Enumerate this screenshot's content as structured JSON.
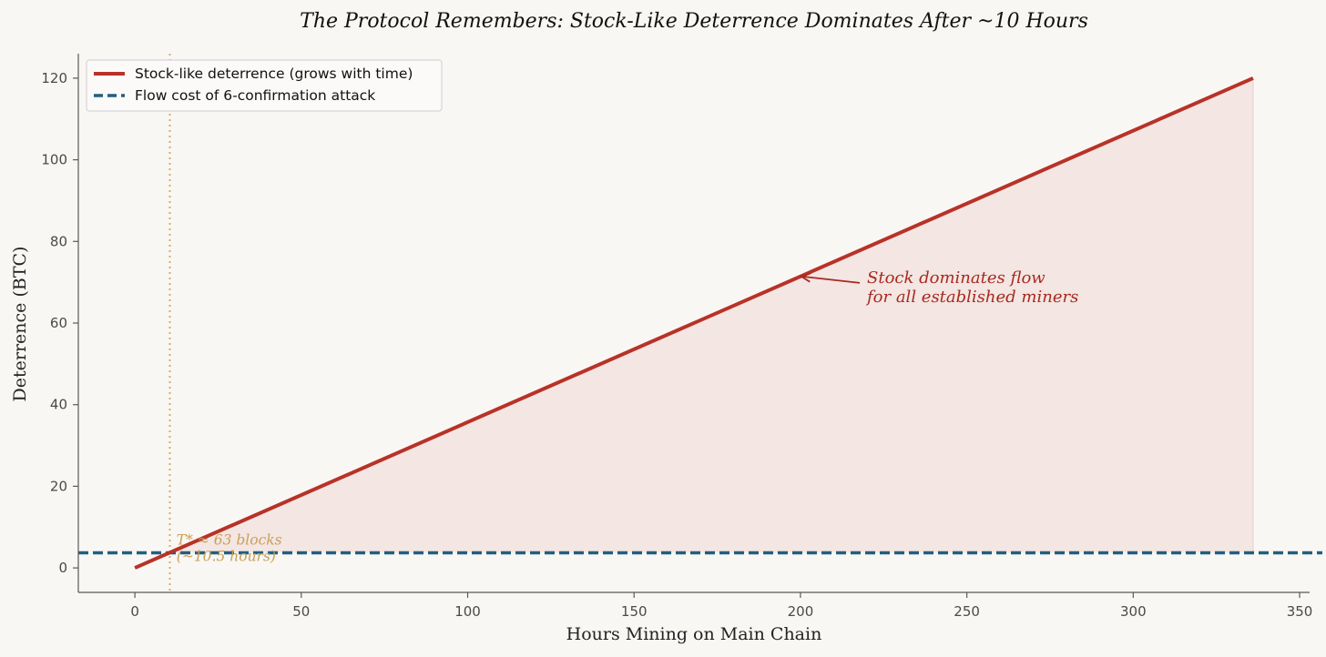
{
  "chart_data": {
    "type": "line",
    "title": "The Protocol Remembers: Stock-Like Deterrence Dominates After ~10 Hours",
    "xlabel": "Hours Mining on Main Chain",
    "ylabel": "Deterrence (BTC)",
    "xlim": [
      -17,
      353
    ],
    "ylim": [
      -6,
      126
    ],
    "xticks": [
      0,
      50,
      100,
      150,
      200,
      250,
      300,
      350
    ],
    "yticks": [
      0,
      20,
      40,
      60,
      80,
      100,
      120
    ],
    "grid": false,
    "legend_position": "top-left",
    "series": [
      {
        "name": "Stock-like deterrence (grows with time)",
        "style": "solid",
        "color": "#b83228",
        "x": [
          0,
          336
        ],
        "y": [
          0,
          120
        ],
        "fill_above": "Flow cost of 6-confirmation attack"
      },
      {
        "name": "Flow cost of 6-confirmation attack",
        "style": "dashed",
        "color": "#225f80",
        "y_constant": 3.7
      }
    ],
    "vline": {
      "x": 10.5,
      "style": "dotted",
      "color": "#d4ad6a"
    },
    "annotations": [
      {
        "id": "crossover",
        "lines": [
          "T* ≈ 63 blocks",
          "(~10.5 hours)"
        ],
        "x": 12.5,
        "y": 3.5,
        "color": "#c9a055"
      },
      {
        "id": "dominates",
        "lines": [
          "Stock dominates flow",
          "for all established miners"
        ],
        "text_x": 220,
        "text_y": 68.5,
        "arrow_to_x": 200,
        "arrow_to_y": 71.4,
        "color": "#a8291f"
      }
    ],
    "colors": {
      "background": "#f9f7f4",
      "fill": "#f3e6e3",
      "axis": "#5a5a5a",
      "tick_text": "#4a4a4a"
    }
  }
}
